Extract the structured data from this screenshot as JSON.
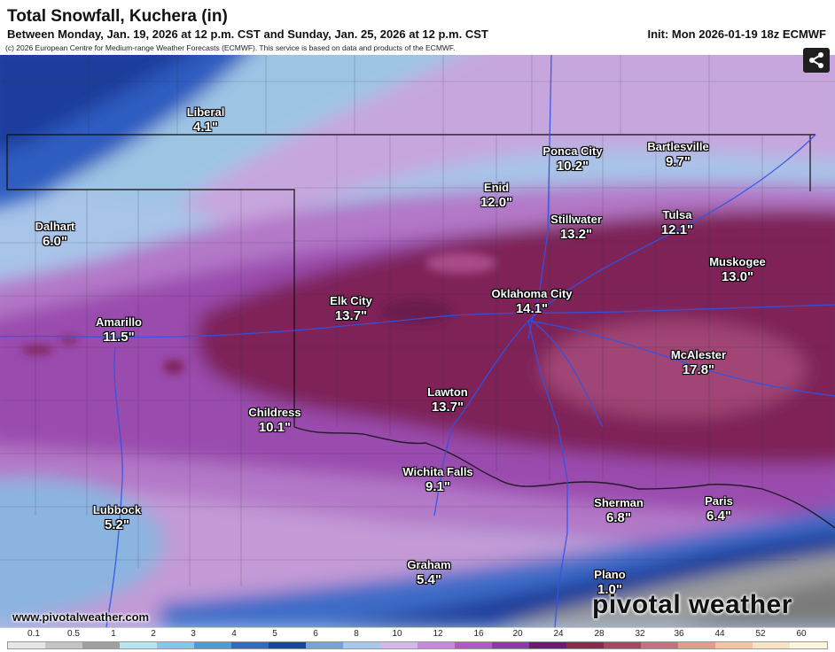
{
  "header": {
    "title": "Total Snowfall, Kuchera (in)",
    "subtitle": "Between Monday, Jan. 19, 2026 at 12 p.m. CST and Sunday, Jan. 25, 2026 at 12 p.m. CST",
    "init": "Init: Mon 2026-01-19 18z ECMWF",
    "copyright": "(c) 2026 European Centre for Medium-range Weather Forecasts (ECMWF). This service is based on data and products of the ECMWF."
  },
  "cities": [
    {
      "name": "Liberal",
      "value": "4.1\""
    },
    {
      "name": "Ponca City",
      "value": "10.2\""
    },
    {
      "name": "Bartlesville",
      "value": "9.7\""
    },
    {
      "name": "Enid",
      "value": "12.0\""
    },
    {
      "name": "Dalhart",
      "value": "6.0\""
    },
    {
      "name": "Stillwater",
      "value": "13.2\""
    },
    {
      "name": "Tulsa",
      "value": "12.1\""
    },
    {
      "name": "Muskogee",
      "value": "13.0\""
    },
    {
      "name": "Elk City",
      "value": "13.7\""
    },
    {
      "name": "Oklahoma City",
      "value": "14.1\""
    },
    {
      "name": "Amarillo",
      "value": "11.5\""
    },
    {
      "name": "McAlester",
      "value": "17.8\""
    },
    {
      "name": "Lawton",
      "value": "13.7\""
    },
    {
      "name": "Childress",
      "value": "10.1\""
    },
    {
      "name": "Wichita Falls",
      "value": "9.1\""
    },
    {
      "name": "Sherman",
      "value": "6.8\""
    },
    {
      "name": "Paris",
      "value": "6.4\""
    },
    {
      "name": "Lubbock",
      "value": "5.2\""
    },
    {
      "name": "Graham",
      "value": "5.4\""
    },
    {
      "name": "Plano",
      "value": "1.0\""
    }
  ],
  "footer": {
    "website": "www.pivotalweather.com",
    "logo": "pivotal weather"
  },
  "legend": {
    "labels": [
      "0.1",
      "0.5",
      "1",
      "2",
      "3",
      "4",
      "5",
      "6",
      "8",
      "10",
      "12",
      "16",
      "20",
      "24",
      "28",
      "32",
      "36",
      "44",
      "52",
      "60"
    ],
    "colors": [
      "#e6e6e6",
      "#c4c4c4",
      "#a0a0a0",
      "#b8e4f0",
      "#84c8e8",
      "#4a9cd8",
      "#2e6cc4",
      "#1a44a4",
      "#7aa2d8",
      "#a7c8e8",
      "#d4b8e8",
      "#c48ad8",
      "#aa5cc4",
      "#8c3aa6",
      "#6e1a6e",
      "#8a2a4c",
      "#a84860",
      "#c87080",
      "#e09c8c",
      "#f0c4a4",
      "#f8e4c4",
      "#fff4dc"
    ]
  },
  "icons": {
    "share": "share-icon"
  }
}
